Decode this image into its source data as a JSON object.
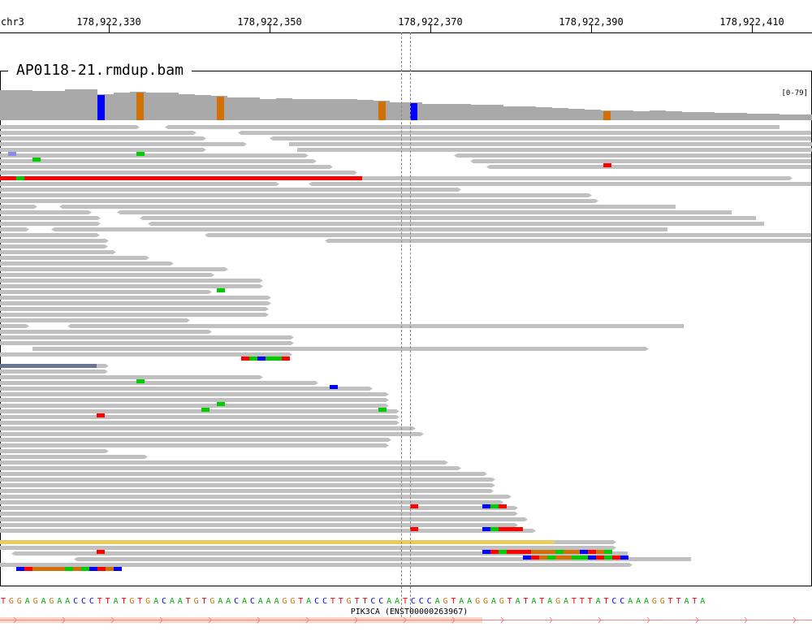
{
  "ruler": {
    "chrom": "chr3",
    "ticks": [
      {
        "label": "178,922,330"
      },
      {
        "label": "178,922,350"
      },
      {
        "label": "178,922,370"
      },
      {
        "label": "178,922,390"
      },
      {
        "label": "178,922,410"
      }
    ]
  },
  "track": {
    "title": "AP0118-21.rmdup.bam",
    "coverage_range": "[0-79]"
  },
  "reference": {
    "sequence": "TGGAGAGAACCCTTATGTGACAATGTGAACACAAAGGTACCTTGTTCCAATCCCAGTAAGGAGTATATAGATTTATCCAAAGGTTATA"
  },
  "gene": {
    "label": "PIK3CA (ENST00000263967)"
  },
  "colors": {
    "read": "#c0c0c0",
    "coverage": "#a9a9a9",
    "A": "#00cc00",
    "C": "#0000ff",
    "G": "#d17105",
    "T": "#ff0000",
    "insertion": "#e8cc60"
  }
}
